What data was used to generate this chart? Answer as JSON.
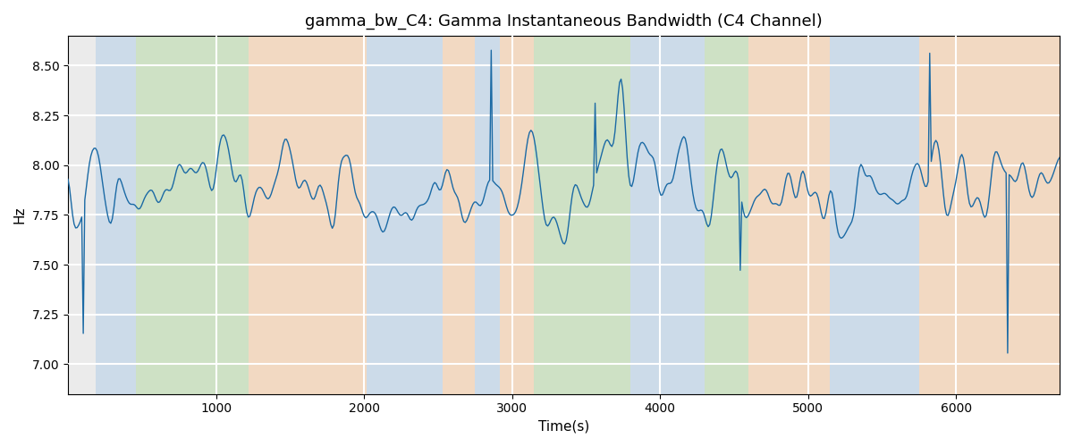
{
  "title": "gamma_bw_C4: Gamma Instantaneous Bandwidth (C4 Channel)",
  "xlabel": "Time(s)",
  "ylabel": "Hz",
  "xlim": [
    0,
    6700
  ],
  "ylim": [
    6.85,
    8.65
  ],
  "background_bands": [
    {
      "xmin": 190,
      "xmax": 460,
      "color": "#AECCE8",
      "alpha": 0.5
    },
    {
      "xmin": 460,
      "xmax": 1220,
      "color": "#B2D9A0",
      "alpha": 0.5
    },
    {
      "xmin": 1220,
      "xmax": 2020,
      "color": "#F9C99A",
      "alpha": 0.5
    },
    {
      "xmin": 2020,
      "xmax": 2530,
      "color": "#AECCE8",
      "alpha": 0.5
    },
    {
      "xmin": 2530,
      "xmax": 2750,
      "color": "#F9C99A",
      "alpha": 0.5
    },
    {
      "xmin": 2750,
      "xmax": 2920,
      "color": "#AECCE8",
      "alpha": 0.5
    },
    {
      "xmin": 2920,
      "xmax": 3150,
      "color": "#F9C99A",
      "alpha": 0.5
    },
    {
      "xmin": 3150,
      "xmax": 3800,
      "color": "#B2D9A0",
      "alpha": 0.5
    },
    {
      "xmin": 3800,
      "xmax": 4300,
      "color": "#AECCE8",
      "alpha": 0.5
    },
    {
      "xmin": 4300,
      "xmax": 4600,
      "color": "#B2D9A0",
      "alpha": 0.5
    },
    {
      "xmin": 4600,
      "xmax": 5150,
      "color": "#F9C99A",
      "alpha": 0.5
    },
    {
      "xmin": 5150,
      "xmax": 5750,
      "color": "#AECCE8",
      "alpha": 0.5
    },
    {
      "xmin": 5750,
      "xmax": 6700,
      "color": "#F9C99A",
      "alpha": 0.5
    }
  ],
  "line_color": "#1B6AA5",
  "line_width": 1.0,
  "bg_color": "#EBEBEB",
  "grid_color": "white",
  "title_fontsize": 13,
  "axis_label_fontsize": 11,
  "yticks": [
    7.0,
    7.25,
    7.5,
    7.75,
    8.0,
    8.25,
    8.5
  ],
  "xticks": [
    1000,
    2000,
    3000,
    4000,
    5000,
    6000
  ],
  "n_points": 650,
  "seed": 17
}
